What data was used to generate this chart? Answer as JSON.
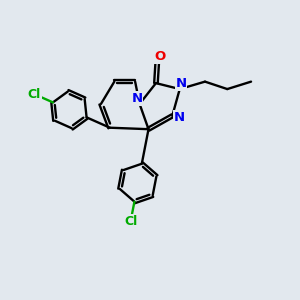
{
  "background_color": "#e2e8ee",
  "bond_color": "#000000",
  "atom_colors": {
    "N": "#0000ee",
    "O": "#ee0000",
    "Cl": "#00aa00",
    "C": "#000000"
  },
  "figsize": [
    3.0,
    3.0
  ],
  "dpi": 100
}
